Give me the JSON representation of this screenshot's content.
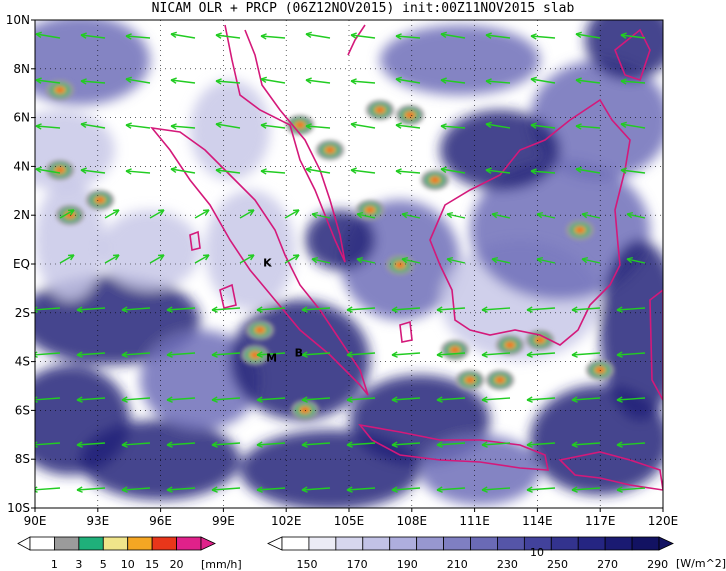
{
  "title": "NICAM OLR + PRCP (06Z12NOV2015) init:00Z11NOV2015 slab",
  "map": {
    "lon_range": [
      90,
      120
    ],
    "lat_range": [
      -10,
      10
    ],
    "x_ticks": [
      "90E",
      "93E",
      "96E",
      "99E",
      "102E",
      "105E",
      "108E",
      "111E",
      "114E",
      "117E",
      "120E"
    ],
    "y_ticks": [
      "10N",
      "8N",
      "6N",
      "4N",
      "2N",
      "EQ",
      "2S",
      "4S",
      "6S",
      "8S",
      "10S"
    ],
    "place_markers": [
      {
        "text": "K",
        "lon": 101.1,
        "lat": -0.1
      },
      {
        "text": "M",
        "lon": 101.3,
        "lat": -4.0
      },
      {
        "text": "B",
        "lon": 102.6,
        "lat": -3.8
      }
    ]
  },
  "precip_colorbar": {
    "labels": [
      "1",
      "3",
      "5",
      "10",
      "15",
      "20"
    ],
    "unit": "[mm/h]",
    "colors": [
      "#ffffff",
      "#9b9b9b",
      "#1fb07a",
      "#f0e58a",
      "#f5a623",
      "#e8361a",
      "#e0218a"
    ]
  },
  "olr_colorbar": {
    "labels": [
      "150",
      "170",
      "190",
      "210",
      "230",
      "250",
      "270",
      "290"
    ],
    "unit": "[W/m^2]",
    "extra_label": "10",
    "colors": [
      "#ffffff",
      "#ececf6",
      "#d6d6ee",
      "#c2c2e6",
      "#aeaede",
      "#9797d0",
      "#7f7fc2",
      "#6a6ab6",
      "#5555a8",
      "#42429c",
      "#33338e",
      "#252582",
      "#1a1a72",
      "#121262"
    ]
  },
  "colors": {
    "coast": "#d4197a",
    "wind": "#22cc22",
    "olr_dark": "#24247a",
    "olr_mid": "#6f6fb8",
    "olr_light": "#c8c8e8"
  }
}
